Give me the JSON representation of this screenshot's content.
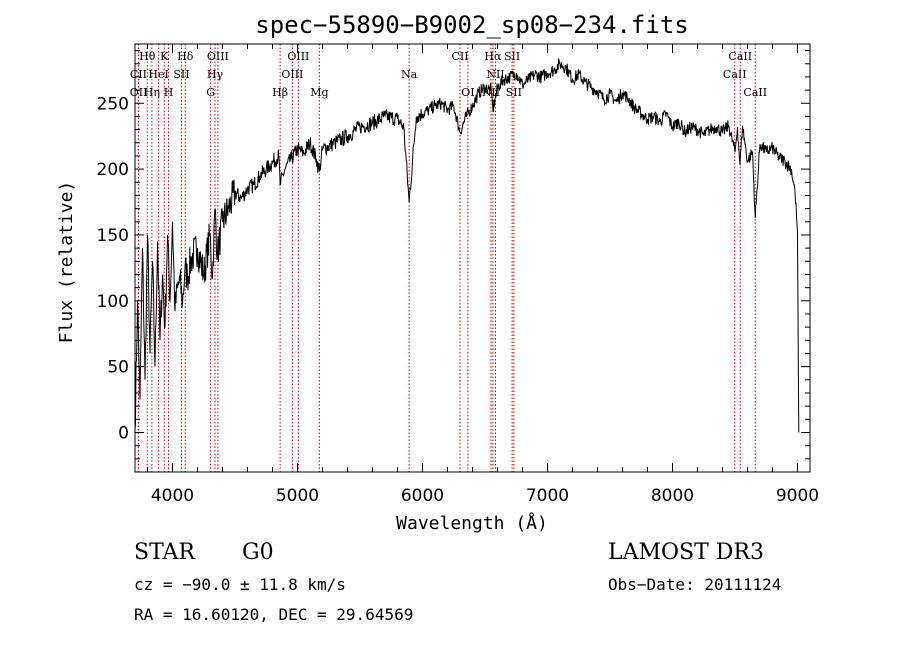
{
  "chart_data": {
    "type": "line",
    "title": "spec−55890−B9002_sp08−234.fits",
    "xlabel": "Wavelength (Å)",
    "ylabel": "Flux (relative)",
    "xlim": [
      3700,
      9100
    ],
    "ylim": [
      -30,
      295
    ],
    "xticks": [
      4000,
      5000,
      6000,
      7000,
      8000,
      9000
    ],
    "yticks": [
      0,
      50,
      100,
      150,
      200,
      250
    ],
    "grid": false,
    "series": [
      {
        "name": "flux",
        "x": [
          3700,
          3720,
          3740,
          3760,
          3780,
          3800,
          3820,
          3840,
          3860,
          3880,
          3900,
          3920,
          3940,
          3960,
          3980,
          4000,
          4020,
          4040,
          4060,
          4080,
          4100,
          4120,
          4150,
          4200,
          4250,
          4300,
          4320,
          4340,
          4360,
          4400,
          4450,
          4500,
          4550,
          4600,
          4650,
          4700,
          4750,
          4800,
          4850,
          4861,
          4900,
          4950,
          5000,
          5050,
          5100,
          5150,
          5175,
          5200,
          5300,
          5400,
          5500,
          5600,
          5700,
          5800,
          5850,
          5893,
          5950,
          6000,
          6050,
          6100,
          6150,
          6200,
          6250,
          6300,
          6350,
          6400,
          6450,
          6500,
          6550,
          6563,
          6600,
          6650,
          6700,
          6750,
          6800,
          6850,
          6900,
          6950,
          7000,
          7050,
          7100,
          7150,
          7200,
          7250,
          7300,
          7350,
          7400,
          7450,
          7500,
          7550,
          7600,
          7650,
          7700,
          7750,
          7800,
          7850,
          7900,
          7950,
          8000,
          8050,
          8100,
          8150,
          8200,
          8250,
          8300,
          8350,
          8400,
          8450,
          8500,
          8520,
          8540,
          8560,
          8600,
          8640,
          8662,
          8700,
          8750,
          8800,
          8850,
          8900,
          8950,
          8980,
          9000,
          9010
        ],
        "y": [
          2,
          100,
          25,
          140,
          40,
          150,
          60,
          130,
          50,
          145,
          70,
          120,
          80,
          150,
          100,
          160,
          92,
          110,
          115,
          98,
          125,
          118,
          132,
          140,
          120,
          150,
          118,
          170,
          135,
          160,
          170,
          182,
          178,
          185,
          188,
          195,
          200,
          205,
          210,
          188,
          200,
          208,
          215,
          212,
          220,
          208,
          198,
          215,
          220,
          225,
          232,
          235,
          240,
          238,
          232,
          175,
          240,
          242,
          245,
          248,
          250,
          245,
          248,
          228,
          240,
          248,
          258,
          262,
          260,
          245,
          262,
          268,
          270,
          273,
          264,
          268,
          272,
          270,
          273,
          275,
          280,
          277,
          268,
          272,
          266,
          262,
          259,
          253,
          257,
          251,
          258,
          253,
          246,
          242,
          238,
          240,
          236,
          242,
          232,
          236,
          228,
          232,
          230,
          226,
          230,
          232,
          228,
          233,
          213,
          232,
          203,
          233,
          206,
          213,
          163,
          219,
          213,
          216,
          209,
          206,
          200,
          183,
          152,
          0
        ]
      }
    ],
    "line_markers": [
      {
        "label": "Hθ",
        "wave": 3798,
        "row": 0
      },
      {
        "label": "K",
        "wave": 3934,
        "row": 0
      },
      {
        "label": "Hδ",
        "wave": 4102,
        "row": 0
      },
      {
        "label": "OIII",
        "wave": 4363,
        "row": 0
      },
      {
        "label": "OIII",
        "wave": 5007,
        "row": 0
      },
      {
        "label": "CII",
        "wave": 6300,
        "row": 0
      },
      {
        "label": "Hα",
        "wave": 6563,
        "row": 0
      },
      {
        "label": "SII",
        "wave": 6717,
        "row": 0
      },
      {
        "label": "CaII",
        "wave": 8542,
        "row": 0
      },
      {
        "label": "CII",
        "wave": 3727,
        "row": 1
      },
      {
        "label": "HeI",
        "wave": 3889,
        "row": 1
      },
      {
        "label": "SII",
        "wave": 4072,
        "row": 1
      },
      {
        "label": "Hγ",
        "wave": 4340,
        "row": 1
      },
      {
        "label": "OIII",
        "wave": 4959,
        "row": 1
      },
      {
        "label": "Na",
        "wave": 5893,
        "row": 1
      },
      {
        "label": "NII",
        "wave": 6584,
        "row": 1
      },
      {
        "label": "CaII",
        "wave": 8498,
        "row": 1
      },
      {
        "label": "OII",
        "wave": 3729,
        "row": 2
      },
      {
        "label": "Hη",
        "wave": 3835,
        "row": 2
      },
      {
        "label": "H",
        "wave": 3968,
        "row": 2
      },
      {
        "label": "G",
        "wave": 4305,
        "row": 2
      },
      {
        "label": "Hβ",
        "wave": 4861,
        "row": 2
      },
      {
        "label": "Mg",
        "wave": 5175,
        "row": 2
      },
      {
        "label": "OI",
        "wave": 6363,
        "row": 2
      },
      {
        "label": "NII",
        "wave": 6548,
        "row": 2
      },
      {
        "label": "SII",
        "wave": 6731,
        "row": 2
      },
      {
        "label": "CaII",
        "wave": 8662,
        "row": 2
      }
    ]
  },
  "info": {
    "object_class": "STAR",
    "subclass": "G0",
    "survey": "LAMOST DR3",
    "redshift": "cz = −90.0 ± 11.8 km/s",
    "obs_date": "Obs−Date: 20111124",
    "coords": "RA =  16.60120, DEC =  29.64569"
  },
  "colors": {
    "axes": "#000000",
    "spectrum": "#000000",
    "marker": "#c00000"
  }
}
